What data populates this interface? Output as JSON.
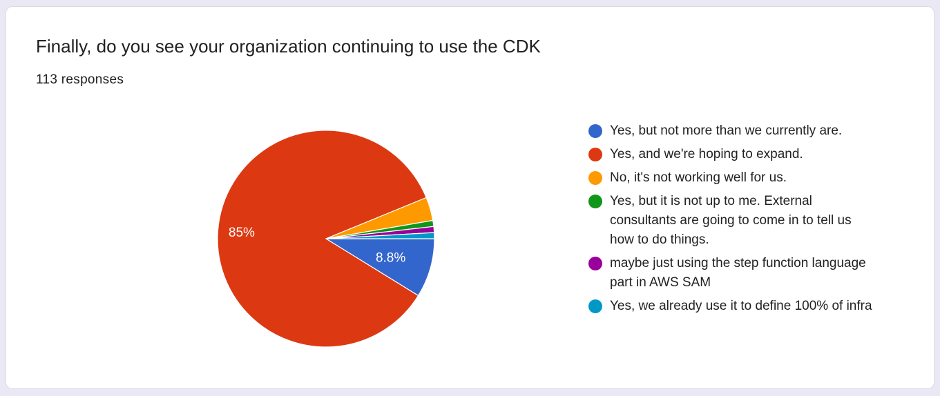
{
  "question": {
    "title": "Finally, do you see your organization continuing to use the CDK",
    "responses": "113 responses"
  },
  "chart_data": {
    "type": "pie",
    "title": "Finally, do you see your organization continuing to use the CDK",
    "slices": [
      {
        "label": "Yes, but not more than we currently are.",
        "value": 8.8,
        "display": "8.8%",
        "color": "#3366cc"
      },
      {
        "label": "Yes, and we're hoping to expand.",
        "value": 85,
        "display": "85%",
        "color": "#dc3912"
      },
      {
        "label": "No, it's not working well for us.",
        "value": 3.5,
        "display": "",
        "color": "#ff9900"
      },
      {
        "label": "Yes, but it is not up to me. External consultants are going to come in to tell us how to do things.",
        "value": 0.9,
        "display": "",
        "color": "#109618"
      },
      {
        "label": "maybe just using the step function language part in AWS SAM",
        "value": 0.9,
        "display": "",
        "color": "#990099"
      },
      {
        "label": "Yes, we already use it to define 100% of infra",
        "value": 0.9,
        "display": "",
        "color": "#0099c6"
      }
    ],
    "legend_position": "right"
  }
}
